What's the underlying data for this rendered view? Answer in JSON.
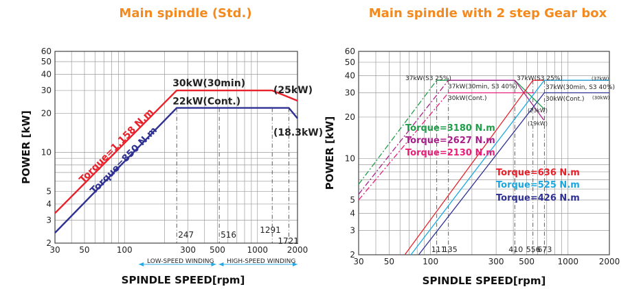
{
  "titles": {
    "left": "Main spindle (Std.)",
    "right": "Main spindle with 2 step Gear box"
  },
  "chart_data": [
    {
      "type": "line",
      "title": "Main spindle (Std.)",
      "xlabel": "SPINDLE SPEED[rpm]",
      "ylabel": "POWER [kW]",
      "xscale": "log",
      "yscale": "log",
      "xlim": [
        30,
        2000
      ],
      "ylim": [
        2,
        60
      ],
      "grid": true,
      "x_ticks": [
        "30",
        "50",
        "100",
        "300",
        "500",
        "1000",
        "2000"
      ],
      "y_ticks": [
        "2",
        "3",
        "4",
        "5",
        "10",
        "20",
        "30",
        "40",
        "50",
        "60"
      ],
      "colors": {
        "red": "#e8202a",
        "navy": "#2e3192",
        "arrow": "#29a9e0"
      },
      "series": [
        {
          "name": "30kW(30min)",
          "color": "#e8202a",
          "points": [
            [
              30,
              3.4
            ],
            [
              247,
              30
            ],
            [
              1291,
              30
            ],
            [
              2000,
              25
            ]
          ]
        },
        {
          "name": "22kW(Cont.)",
          "color": "#2e3192",
          "points": [
            [
              30,
              2.4
            ],
            [
              247,
              22
            ],
            [
              1721,
              22
            ],
            [
              2000,
              18.3
            ]
          ]
        }
      ],
      "labels": {
        "red_top": "30kW(30min)",
        "navy_top": "22kW(Cont.)",
        "red_end": "(25kW)",
        "navy_end": "(18.3kW)",
        "red_slope": "Torque=1,158 N.m",
        "navy_slope": "Torque=850 N.m"
      },
      "speed_marks": [
        {
          "rpm": 247,
          "label": "247"
        },
        {
          "rpm": 516,
          "label": "516"
        },
        {
          "rpm": 1291,
          "label": "1291"
        },
        {
          "rpm": 1721,
          "label": "1721"
        }
      ],
      "winding": {
        "low": "LOW-SPEED WINDING",
        "high": "HIGH-SPEED WINDING",
        "split_rpm": 500
      }
    },
    {
      "type": "line",
      "title": "Main spindle with 2 step Gear box",
      "xlabel": "SPINDLE SPEED[rpm]",
      "ylabel": "POWER [kW]",
      "xscale": "log",
      "yscale": "log",
      "xlim": [
        30,
        2000
      ],
      "ylim": [
        2,
        60
      ],
      "grid": true,
      "x_ticks": [
        "30",
        "50",
        "100",
        "300",
        "500",
        "1000",
        "2000"
      ],
      "y_ticks": [
        "2",
        "3",
        "4",
        "5",
        "10",
        "20",
        "30",
        "40",
        "50",
        "60"
      ],
      "colors": {
        "green": "#1f9d48",
        "magenta": "#a81e8a",
        "pink": "#e8207a",
        "red": "#e8202a",
        "cyan": "#1aa7e0",
        "navy": "#2e3192"
      },
      "series": [
        {
          "name": "37kW(S3 25%)",
          "color": "#1f9d48",
          "dashed_until": 111,
          "points": [
            [
              30,
              6.5
            ],
            [
              111,
              37
            ],
            [
              410,
              37
            ],
            [
              667,
              23
            ]
          ]
        },
        {
          "name": "37kW(30min, S3 40%)",
          "color": "#a81e8a",
          "dashed_until": 135,
          "points": [
            [
              30,
              5.5
            ],
            [
              135,
              37
            ],
            [
              410,
              37
            ],
            [
              667,
              19
            ]
          ]
        },
        {
          "name": "30kW(Cont.)",
          "color": "#e8207a",
          "dashed_until": 135,
          "points": [
            [
              30,
              5.0
            ],
            [
              135,
              30
            ],
            [
              450,
              30
            ],
            [
              566,
              30
            ]
          ]
        },
        {
          "name": "Torque=636 N.m",
          "color": "#e8202a",
          "points": [
            [
              65,
              2
            ],
            [
              556,
              37
            ],
            [
              2000,
              37
            ]
          ]
        },
        {
          "name": "Torque=525 N.m",
          "color": "#1aa7e0",
          "points": [
            [
              72,
              2
            ],
            [
              673,
              37
            ],
            [
              2000,
              37
            ]
          ]
        },
        {
          "name": "Torque=426 N.m",
          "color": "#2e3192",
          "points": [
            [
              82,
              2
            ],
            [
              673,
              30
            ],
            [
              2000,
              30
            ]
          ]
        }
      ],
      "labels": {
        "green_top": "37kW(S3 25%)",
        "magenta_top": "37kW(30min, S3 40%)",
        "pink_top": "30kW(Cont.)",
        "green_end": "(23kW)",
        "magenta_end": "(19kW)",
        "high_a": "37kW(S3 25%)",
        "high_b": "37kW(30min, S3 40%)",
        "high_c": "30kW(Cont.)",
        "edge_a": "(37kW)",
        "edge_b": "(30kW)",
        "torque_1": "Torque=3180 N.m",
        "torque_2": "Torque=2627 N.m",
        "torque_3": "Torque=2130 N.m",
        "torque_4": "Torque=636 N.m",
        "torque_5": "Torque=525 N.m",
        "torque_6": "Torque=426 N.m"
      },
      "speed_marks": [
        {
          "rpm": 111,
          "label": "111"
        },
        {
          "rpm": 135,
          "label": "135"
        },
        {
          "rpm": 410,
          "label": "410"
        },
        {
          "rpm": 556,
          "label": "556"
        },
        {
          "rpm": 673,
          "label": "673"
        }
      ]
    }
  ]
}
